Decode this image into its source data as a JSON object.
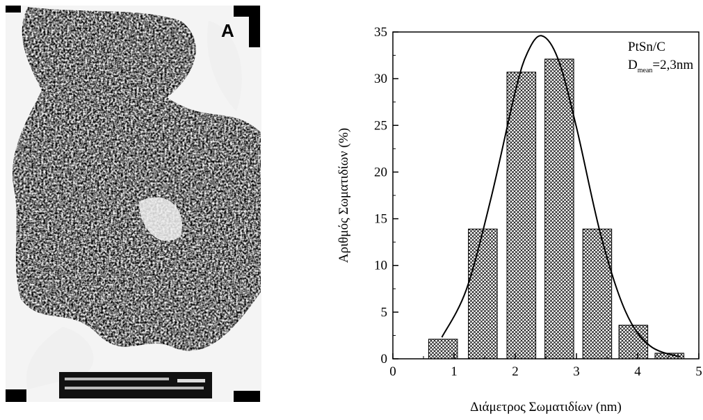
{
  "image": {
    "label": "A"
  },
  "chart_data": {
    "type": "bar",
    "xlabel": "Διάμετρος Σωματιδίων (nm)",
    "ylabel": "Αριθμός Σωματιδίων (%)",
    "annotation": {
      "line1": "PtSn/C",
      "symbol": "D",
      "subscript": "mean",
      "value": "=2,3nm"
    },
    "xlim": [
      0,
      5
    ],
    "xticks": [
      0,
      1,
      2,
      3,
      4,
      5
    ],
    "xminorticks": [
      0.5,
      1.5,
      2.5,
      3.5,
      4.5
    ],
    "ylim": [
      0,
      35
    ],
    "yticks": [
      0,
      5,
      10,
      15,
      20,
      25,
      30,
      35
    ],
    "yminorticks": [
      2.5,
      7.5,
      12.5,
      17.5,
      22.5,
      27.5,
      32.5
    ],
    "series": [
      {
        "type": "bar",
        "color": "#000000",
        "x": [
          0.82,
          1.47,
          2.1,
          2.72,
          3.34,
          3.93,
          4.52
        ],
        "values": [
          2.1,
          13.9,
          30.7,
          32.1,
          13.9,
          3.6,
          0.6
        ]
      },
      {
        "type": "line",
        "color": "#000000",
        "x": [
          0.8,
          1.2,
          1.6,
          2.0,
          2.2,
          2.43,
          2.7,
          3.0,
          3.4,
          3.8,
          4.2,
          4.7
        ],
        "values": [
          2.3,
          7.4,
          17.1,
          28.6,
          32.8,
          34.6,
          32.1,
          24.8,
          13.2,
          5.1,
          1.4,
          0.2
        ]
      }
    ]
  }
}
